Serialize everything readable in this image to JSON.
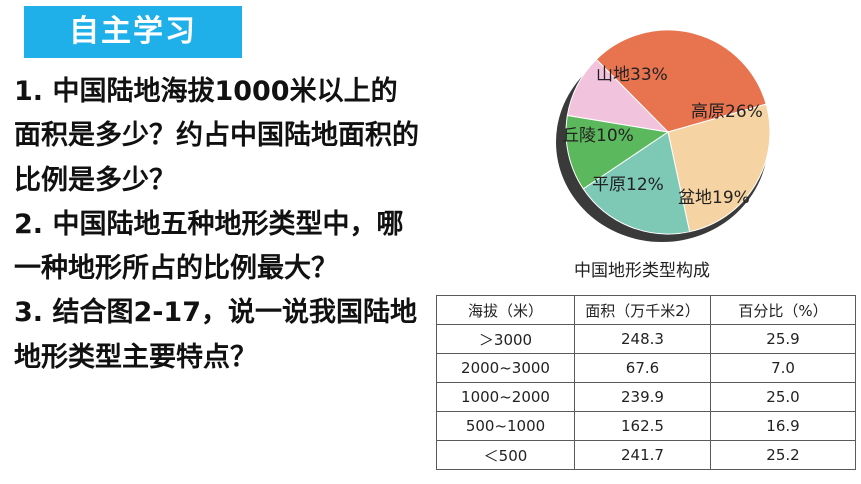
{
  "banner": {
    "title": "自主学习"
  },
  "questions": [
    "1. 中国陆地海拔1000米以上的面积是多少？约占中国陆地面积的比例是多少？",
    "2. 中国陆地五种地形类型中，哪一种地形所占的比例最大？",
    "3. 结合图2-17，说一说我国陆地地形类型主要特点？"
  ],
  "pie_chart": {
    "caption": "中国地形类型构成",
    "slices": [
      {
        "label": "山地33%",
        "value": 33,
        "color": "#e8734f"
      },
      {
        "label": "高原26%",
        "value": 26,
        "color": "#f6d3a2"
      },
      {
        "label": "盆地19%",
        "value": 19,
        "color": "#7ec9b6"
      },
      {
        "label": "平原12%",
        "value": 12,
        "color": "#5cb85c"
      },
      {
        "label": "丘陵10%",
        "value": 10,
        "color": "#f2c3dc"
      }
    ]
  },
  "table": {
    "headers": [
      "海拔（米）",
      "面积（万千米2）",
      "百分比（%）"
    ],
    "rows": [
      [
        "＞3000",
        "248.3",
        "25.9"
      ],
      [
        "2000~3000",
        "67.6",
        "7.0"
      ],
      [
        "1000~2000",
        "239.9",
        "25.0"
      ],
      [
        "500~1000",
        "162.5",
        "16.9"
      ],
      [
        "＜500",
        "241.7",
        "25.2"
      ]
    ]
  }
}
